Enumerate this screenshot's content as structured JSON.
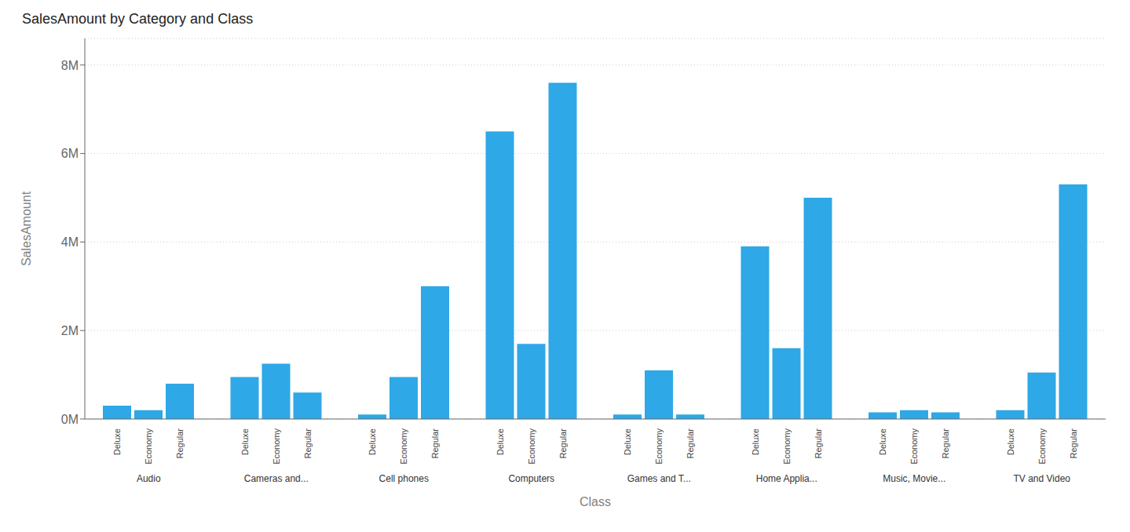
{
  "chart_data": {
    "type": "bar",
    "title": "SalesAmount by Category and Class",
    "xlabel": "Class",
    "ylabel": "SalesAmount",
    "categories": [
      "Audio",
      "Cameras and...",
      "Cell phones",
      "Computers",
      "Games and T...",
      "Home Applia...",
      "Music, Movie...",
      "TV and Video"
    ],
    "series": [
      {
        "name": "Deluxe",
        "values": [
          300000,
          950000,
          100000,
          6500000,
          100000,
          3900000,
          150000,
          200000
        ]
      },
      {
        "name": "Economy",
        "values": [
          200000,
          1250000,
          950000,
          1700000,
          1100000,
          1600000,
          200000,
          1050000
        ]
      },
      {
        "name": "Regular",
        "values": [
          800000,
          600000,
          3000000,
          7600000,
          100000,
          5000000,
          150000,
          5300000
        ]
      }
    ],
    "color": "#2EA8E6",
    "ylim": [
      0,
      8600000
    ],
    "yticks": [
      {
        "value": 0,
        "label": "0M"
      },
      {
        "value": 2000000,
        "label": "2M"
      },
      {
        "value": 4000000,
        "label": "4M"
      },
      {
        "value": 6000000,
        "label": "6M"
      },
      {
        "value": 8000000,
        "label": "8M"
      }
    ],
    "grid": true
  }
}
